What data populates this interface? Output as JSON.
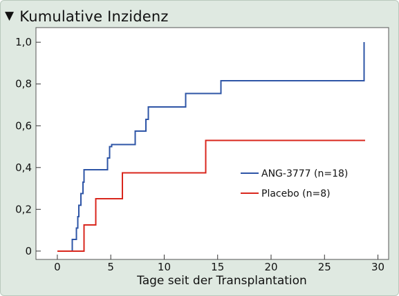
{
  "header": {
    "title": "Kumulative Inzidenz",
    "marker": "▼"
  },
  "chart_data": {
    "type": "line",
    "step": true,
    "title": "",
    "xlabel": "Tage seit der Transplantation",
    "ylabel": "",
    "xlim": [
      -2,
      31
    ],
    "ylim": [
      -0.04,
      1.07
    ],
    "xticks": [
      0,
      5,
      10,
      15,
      20,
      25,
      30
    ],
    "xtick_labels": [
      "0",
      "5",
      "10",
      "15",
      "20",
      "25",
      "30"
    ],
    "yticks": [
      0,
      0.2,
      0.4,
      0.6,
      0.8,
      1.0
    ],
    "ytick_labels": [
      "0",
      "0,2",
      "0,4",
      "0,6",
      "0,8",
      "1,0"
    ],
    "grid": false,
    "legend_position": "right-middle",
    "series": [
      {
        "name": "ANG-3777 (n=18)",
        "color": "#2d54a6",
        "x": [
          0,
          1.4,
          1.8,
          1.9,
          2.0,
          2.2,
          2.4,
          2.5,
          2.6,
          4.7,
          4.9,
          5.1,
          7.3,
          8.3,
          8.5,
          12.0,
          15.3,
          28.7,
          28.7
        ],
        "y": [
          0,
          0.055,
          0.11,
          0.165,
          0.22,
          0.275,
          0.33,
          0.39,
          0.39,
          0.445,
          0.5,
          0.51,
          0.575,
          0.63,
          0.69,
          0.755,
          0.815,
          0.815,
          1.0
        ]
      },
      {
        "name": "Placebo (n=8)",
        "color": "#d9261c",
        "x": [
          0,
          2.5,
          3.6,
          6.1,
          13.9,
          28.8
        ],
        "y": [
          0,
          0.125,
          0.25,
          0.375,
          0.53,
          0.53
        ]
      }
    ]
  }
}
